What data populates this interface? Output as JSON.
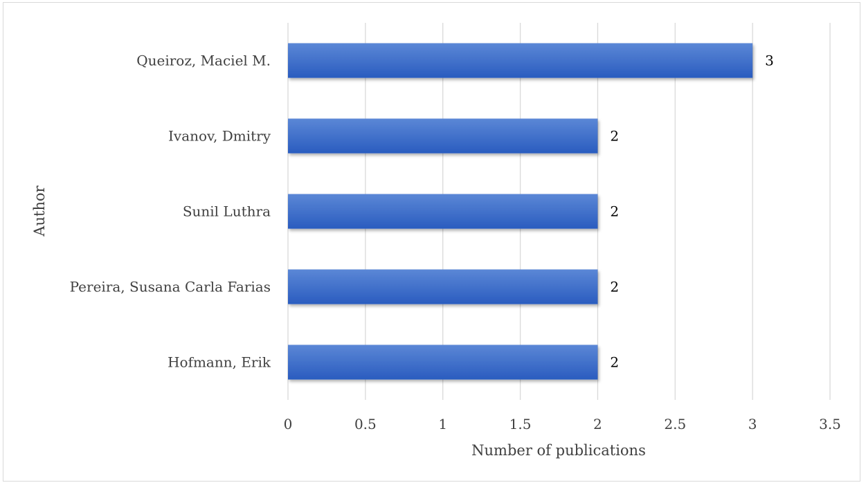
{
  "chart_data": {
    "type": "bar",
    "orientation": "horizontal",
    "categories": [
      "Queiroz, Maciel M.",
      "Ivanov, Dmitry",
      "Sunil Luthra",
      "Pereira, Susana Carla Farias",
      "Hofmann, Erik"
    ],
    "values": [
      3,
      2,
      2,
      2,
      2
    ],
    "data_labels": [
      "3",
      "2",
      "2",
      "2",
      "2"
    ],
    "title": "",
    "xlabel": "Number of publications",
    "ylabel": "Author",
    "xlim": [
      0,
      3.5
    ],
    "x_ticks": [
      0,
      0.5,
      1,
      1.5,
      2,
      2.5,
      3,
      3.5
    ],
    "x_tick_labels": [
      "0",
      "0.5",
      "1",
      "1.5",
      "2",
      "2.5",
      "3",
      "3.5"
    ],
    "grid": "vertical",
    "legend": "none",
    "colors": {
      "bar_light": "#5b87d6",
      "bar_dark": "#2a5cbf",
      "grid": "#d9d9d9",
      "text": "#404040"
    }
  }
}
